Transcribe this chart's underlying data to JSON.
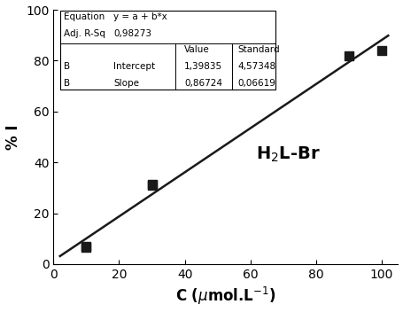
{
  "x_data": [
    10,
    10,
    30,
    30,
    90,
    100
  ],
  "y_data": [
    7,
    6.5,
    31,
    31.5,
    82,
    84
  ],
  "intercept": 1.39835,
  "slope": 0.86724,
  "x_line_start": 2,
  "x_line_end": 102,
  "xlim": [
    0,
    105
  ],
  "ylim": [
    0,
    100
  ],
  "xticks": [
    0,
    20,
    40,
    60,
    80,
    100
  ],
  "yticks": [
    0,
    20,
    40,
    60,
    80,
    100
  ],
  "xlabel": "C (μmol.L⁻¹)",
  "ylabel": "% I",
  "label_text": "H$_2$L-Br",
  "table": {
    "row0": [
      "Equation",
      "y = a + b*x",
      "",
      ""
    ],
    "row1": [
      "Adj. R-Sq",
      "0,98273",
      "",
      ""
    ],
    "row2": [
      "",
      "",
      "Value",
      "Standard"
    ],
    "row3": [
      "B",
      "Intercept",
      "1,39835",
      "4,57348"
    ],
    "row4": [
      "B",
      "Slope",
      "0,86724",
      "0,06619"
    ]
  },
  "marker_color": "#1a1a1a",
  "line_color": "#1a1a1a",
  "marker_size": 49,
  "marker": "s",
  "background_color": "#ffffff",
  "fontsize_axis": 12,
  "fontsize_table": 7.5
}
